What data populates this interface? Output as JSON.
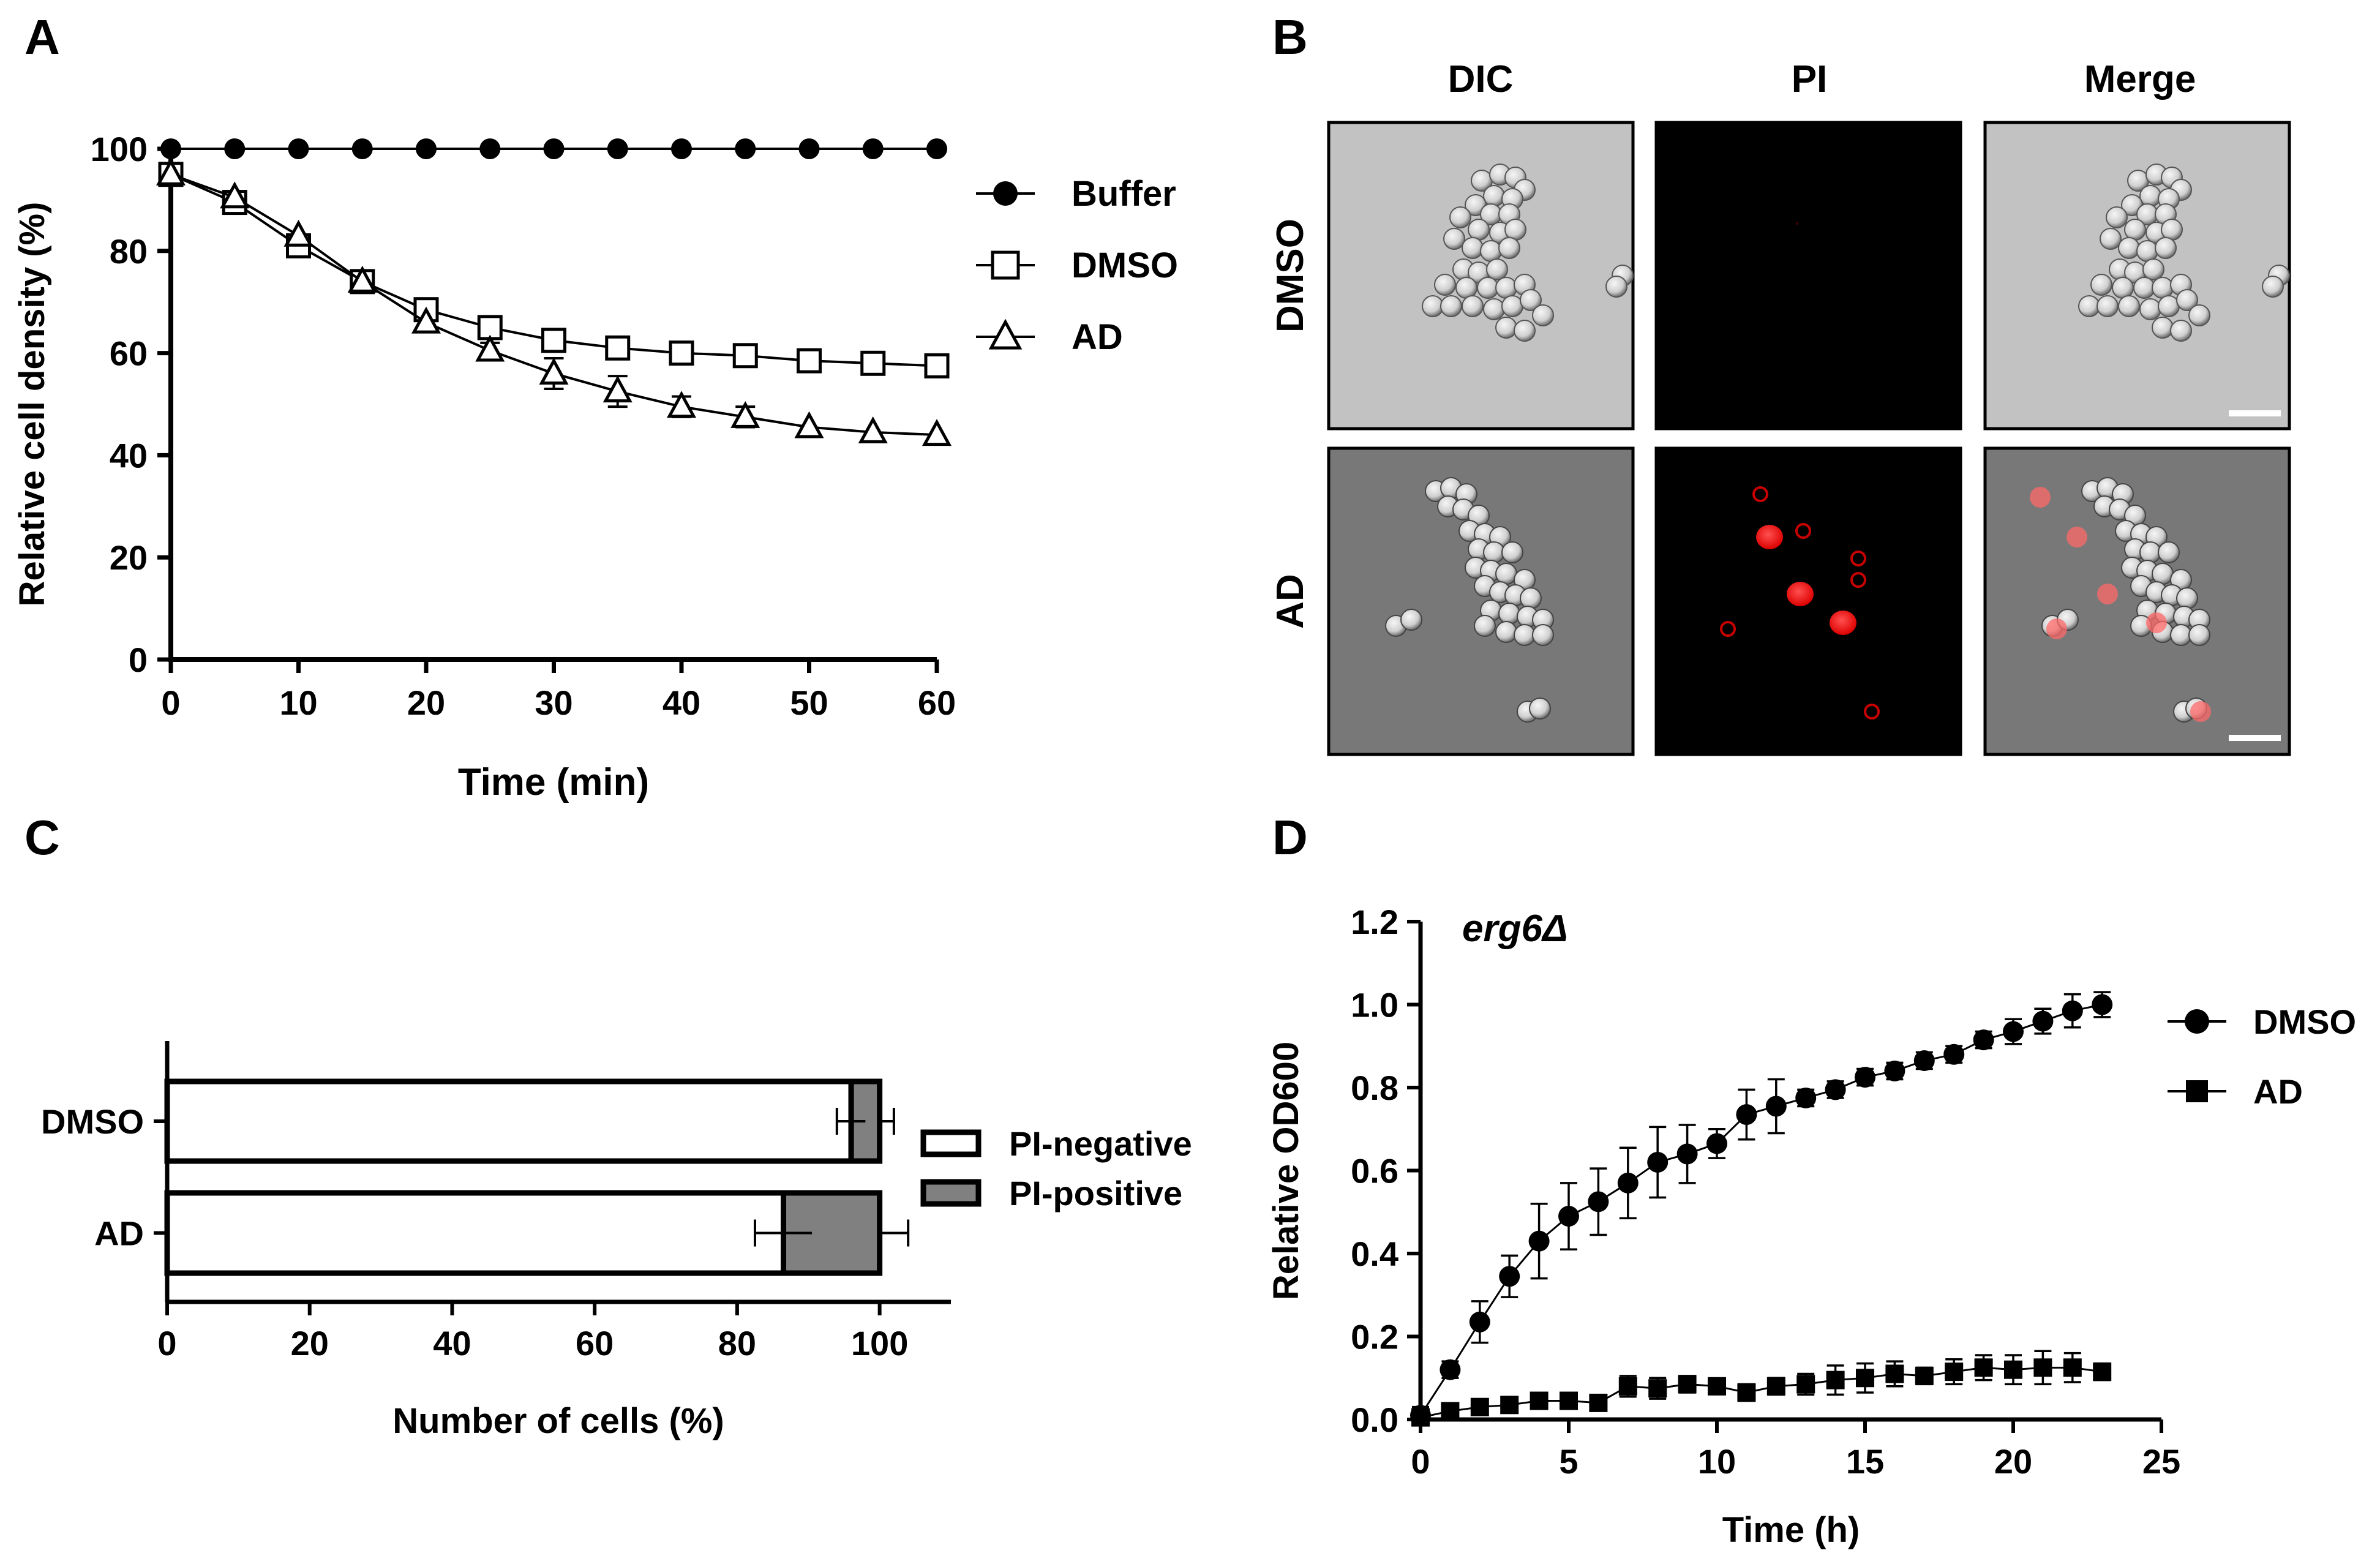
{
  "panels": {
    "a": {
      "letter": "A"
    },
    "b": {
      "letter": "B"
    },
    "c": {
      "letter": "C"
    },
    "d": {
      "letter": "D"
    }
  },
  "chart_data": [
    {
      "panel": "A",
      "type": "line",
      "xlabel": "Time (min)",
      "ylabel": "Relative cell density (%)",
      "xlim": [
        0,
        60
      ],
      "ylim": [
        0,
        100
      ],
      "xticks": [
        0,
        10,
        20,
        30,
        40,
        50,
        60
      ],
      "yticks": [
        0,
        20,
        40,
        60,
        80,
        100
      ],
      "x": [
        0,
        5,
        10,
        15,
        20,
        25,
        30,
        35,
        40,
        45,
        50,
        55,
        60
      ],
      "legend_position": "right",
      "series": [
        {
          "name": "Buffer",
          "marker": "filled-circle",
          "values": [
            100,
            100,
            100,
            100,
            100,
            100,
            100,
            100,
            100,
            100,
            100,
            100,
            100
          ],
          "errors": [
            0,
            0,
            0,
            0,
            0,
            0,
            0,
            0,
            0,
            0,
            0,
            0,
            0
          ]
        },
        {
          "name": "DMSO",
          "marker": "open-square",
          "values": [
            95,
            89.5,
            81,
            74,
            68.5,
            65,
            62.5,
            61,
            60,
            59.5,
            58.5,
            58,
            57.5
          ],
          "errors": [
            0,
            0.6,
            0.8,
            0.8,
            0.8,
            0.8,
            0.8,
            0.8,
            0.8,
            0.8,
            0.8,
            0.8,
            0.8
          ]
        },
        {
          "name": "AD",
          "marker": "open-triangle",
          "values": [
            95,
            90.5,
            83,
            74,
            66,
            60.5,
            56,
            52.5,
            49.5,
            47.5,
            45.5,
            44.5,
            44
          ],
          "errors": [
            0,
            0.5,
            0.8,
            0.8,
            1,
            1.5,
            3,
            3,
            2,
            2,
            1,
            0.8,
            0.8
          ]
        }
      ]
    },
    {
      "panel": "C",
      "type": "bar",
      "orientation": "horizontal",
      "stacked": true,
      "xlabel": "Number of cells (%)",
      "xlim": [
        0,
        110
      ],
      "xticks": [
        0,
        20,
        40,
        60,
        80,
        100
      ],
      "categories": [
        "DMSO",
        "AD"
      ],
      "legend_position": "right",
      "series": [
        {
          "name": "PI-negative",
          "color": "#ffffff",
          "values": [
            96,
            86.5
          ],
          "errors": [
            2,
            4
          ]
        },
        {
          "name": "PI-positive",
          "color": "#808080",
          "values": [
            4,
            13.5
          ],
          "errors": [
            2,
            4
          ]
        }
      ]
    },
    {
      "panel": "D",
      "type": "line",
      "title": "erg6Δ",
      "xlabel": "Time (h)",
      "ylabel": "Relative OD600",
      "xlim": [
        0,
        25
      ],
      "ylim": [
        0,
        1.2
      ],
      "xticks": [
        0,
        5,
        10,
        15,
        20,
        25
      ],
      "yticks": [
        "0.0",
        "0.2",
        "0.4",
        "0.6",
        "0.8",
        "1.0",
        "1.2"
      ],
      "x": [
        0,
        1,
        2,
        3,
        4,
        5,
        6,
        7,
        8,
        9,
        10,
        11,
        12,
        13,
        14,
        15,
        16,
        17,
        18,
        19,
        20,
        21,
        22,
        23
      ],
      "legend_position": "right",
      "series": [
        {
          "name": "DMSO",
          "marker": "filled-circle",
          "values": [
            0.01,
            0.12,
            0.235,
            0.345,
            0.43,
            0.49,
            0.525,
            0.57,
            0.62,
            0.64,
            0.665,
            0.735,
            0.755,
            0.775,
            0.795,
            0.825,
            0.84,
            0.865,
            0.88,
            0.915,
            0.935,
            0.96,
            0.985,
            1.0
          ],
          "errors": [
            0.02,
            0.02,
            0.05,
            0.05,
            0.09,
            0.08,
            0.08,
            0.085,
            0.085,
            0.07,
            0.035,
            0.06,
            0.065,
            0.02,
            0.02,
            0.02,
            0.02,
            0.02,
            0.02,
            0.02,
            0.03,
            0.03,
            0.04,
            0.03
          ]
        },
        {
          "name": "AD",
          "marker": "filled-square",
          "values": [
            0.005,
            0.02,
            0.03,
            0.035,
            0.045,
            0.045,
            0.04,
            0.08,
            0.075,
            0.085,
            0.08,
            0.065,
            0.08,
            0.085,
            0.095,
            0.1,
            0.11,
            0.105,
            0.115,
            0.125,
            0.12,
            0.125,
            0.125,
            0.115
          ],
          "errors": [
            0.01,
            0.01,
            0.01,
            0.01,
            0.01,
            0.01,
            0.01,
            0.025,
            0.025,
            0.02,
            0.01,
            0.02,
            0.02,
            0.025,
            0.035,
            0.035,
            0.03,
            0.02,
            0.03,
            0.03,
            0.035,
            0.04,
            0.035,
            0.02
          ]
        }
      ]
    }
  ],
  "microscopy": {
    "columns": [
      "DIC",
      "PI",
      "Merge"
    ],
    "rows": [
      "DMSO",
      "AD"
    ],
    "has_scale_bar": true
  }
}
